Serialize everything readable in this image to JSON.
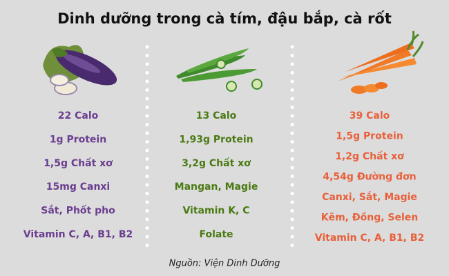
{
  "title": "Dinh dưỡng trong cà tím, đậu bắp, cà rốt",
  "columns": [
    {
      "items": [
        "22 Calo",
        "1g Protein",
        "1,5g Chất xơ",
        "15mg Canxi",
        "Sắt, Phốt pho",
        "Vitamin C, A, B1, B2"
      ]
    },
    {
      "items": [
        "13 Calo",
        "1,93g Protein",
        "3,2g Chất xơ",
        "Mangan, Magie",
        "Vitamin K, C",
        "Folate"
      ]
    },
    {
      "items": [
        "39 Calo",
        "1,5g Protein",
        "1,2g Chất xơ",
        "4,54g Đường đơn",
        "Canxi, Sắt, Magie",
        "Kẽm, Đồng, Selen",
        "Vitamin C, A, B1, B2"
      ]
    }
  ],
  "source": "Nguồn: Viện Dinh Dưỡng"
}
